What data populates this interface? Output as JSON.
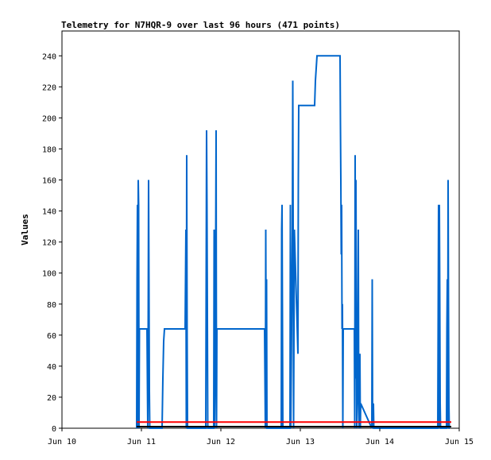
{
  "chart_data": {
    "type": "line",
    "title": "Telemetry for N7HQR-9 over last 96 hours (471 points)",
    "xlabel": "",
    "ylabel": "Values",
    "xlim": [
      0,
      5
    ],
    "ylim": [
      0,
      256
    ],
    "x_ticks": [
      {
        "label": "Jun 10",
        "value": 0
      },
      {
        "label": "Jun 11",
        "value": 1
      },
      {
        "label": "Jun 12",
        "value": 2
      },
      {
        "label": "Jun 13",
        "value": 3
      },
      {
        "label": "Jun 14",
        "value": 4
      },
      {
        "label": "Jun 15",
        "value": 5
      }
    ],
    "y_ticks": [
      0,
      20,
      40,
      60,
      80,
      100,
      120,
      140,
      160,
      180,
      200,
      220,
      240
    ],
    "grid": false,
    "legend": "none",
    "series": [
      {
        "color": "#0066cc",
        "points": [
          [
            0.94,
            0
          ],
          [
            0.945,
            96
          ],
          [
            0.95,
            144
          ],
          [
            0.955,
            0
          ],
          [
            0.96,
            160
          ],
          [
            0.965,
            144
          ],
          [
            0.97,
            0
          ],
          [
            0.975,
            64
          ],
          [
            1.07,
            64
          ],
          [
            1.08,
            0
          ],
          [
            1.085,
            64
          ],
          [
            1.09,
            160
          ],
          [
            1.095,
            96
          ],
          [
            1.1,
            24
          ],
          [
            1.105,
            0
          ],
          [
            1.26,
            0
          ],
          [
            1.27,
            32
          ],
          [
            1.28,
            56
          ],
          [
            1.29,
            64
          ],
          [
            1.55,
            64
          ],
          [
            1.555,
            96
          ],
          [
            1.56,
            128
          ],
          [
            1.565,
            0
          ],
          [
            1.57,
            176
          ],
          [
            1.575,
            64
          ],
          [
            1.58,
            0
          ],
          [
            1.81,
            0
          ],
          [
            1.815,
            96
          ],
          [
            1.82,
            192
          ],
          [
            1.825,
            144
          ],
          [
            1.83,
            72
          ],
          [
            1.835,
            0
          ],
          [
            1.91,
            0
          ],
          [
            1.915,
            128
          ],
          [
            1.92,
            0
          ],
          [
            1.93,
            48
          ],
          [
            1.94,
            192
          ],
          [
            1.945,
            0
          ],
          [
            1.95,
            64
          ],
          [
            2.55,
            64
          ],
          [
            2.56,
            0
          ],
          [
            2.565,
            128
          ],
          [
            2.57,
            32
          ],
          [
            2.575,
            96
          ],
          [
            2.58,
            0
          ],
          [
            2.76,
            0
          ],
          [
            2.765,
            128
          ],
          [
            2.77,
            144
          ],
          [
            2.775,
            72
          ],
          [
            2.78,
            0
          ],
          [
            2.87,
            0
          ],
          [
            2.875,
            144
          ],
          [
            2.88,
            0
          ],
          [
            2.9,
            128
          ],
          [
            2.905,
            224
          ],
          [
            2.91,
            128
          ],
          [
            2.915,
            0
          ],
          [
            2.925,
            128
          ],
          [
            2.97,
            48
          ],
          [
            2.975,
            160
          ],
          [
            2.98,
            208
          ],
          [
            3.18,
            208
          ],
          [
            3.19,
            224
          ],
          [
            3.2,
            232
          ],
          [
            3.21,
            240
          ],
          [
            3.5,
            240
          ],
          [
            3.505,
            196
          ],
          [
            3.51,
            160
          ],
          [
            3.515,
            112
          ],
          [
            3.52,
            144
          ],
          [
            3.525,
            64
          ],
          [
            3.53,
            80
          ],
          [
            3.535,
            0
          ],
          [
            3.54,
            64
          ],
          [
            3.68,
            64
          ],
          [
            3.685,
            0
          ],
          [
            3.69,
            176
          ],
          [
            3.695,
            32
          ],
          [
            3.7,
            160
          ],
          [
            3.705,
            72
          ],
          [
            3.71,
            0
          ],
          [
            3.72,
            32
          ],
          [
            3.73,
            128
          ],
          [
            3.735,
            16
          ],
          [
            3.74,
            0
          ],
          [
            3.75,
            48
          ],
          [
            3.755,
            0
          ],
          [
            3.76,
            16
          ],
          [
            3.9,
            0
          ],
          [
            3.905,
            96
          ],
          [
            3.91,
            0
          ],
          [
            3.92,
            16
          ],
          [
            3.925,
            0
          ],
          [
            4.73,
            0
          ],
          [
            4.735,
            72
          ],
          [
            4.74,
            144
          ],
          [
            4.745,
            0
          ],
          [
            4.75,
            144
          ],
          [
            4.755,
            88
          ],
          [
            4.76,
            16
          ],
          [
            4.765,
            0
          ],
          [
            4.84,
            0
          ],
          [
            4.845,
            64
          ],
          [
            4.85,
            96
          ],
          [
            4.855,
            0
          ],
          [
            4.86,
            160
          ],
          [
            4.865,
            80
          ],
          [
            4.87,
            16
          ],
          [
            4.875,
            0
          ],
          [
            4.88,
            0
          ]
        ]
      },
      {
        "color": "#ff0000",
        "points": [
          [
            0.94,
            4
          ],
          [
            4.9,
            4
          ]
        ]
      },
      {
        "color": "#000000",
        "points": [
          [
            0.94,
            1
          ],
          [
            4.9,
            1
          ]
        ]
      }
    ]
  }
}
